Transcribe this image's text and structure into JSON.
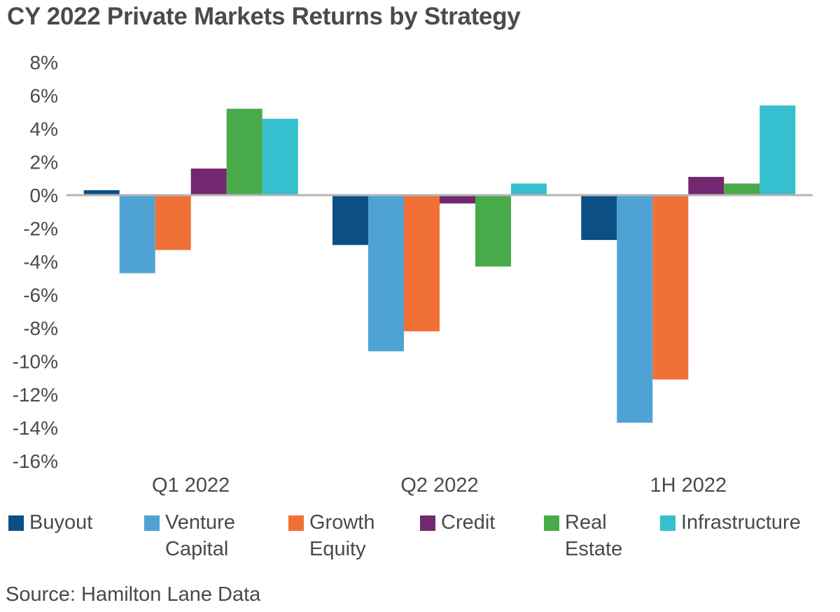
{
  "chart_data": {
    "type": "bar",
    "title": "CY 2022 Private Markets Returns by Strategy",
    "xlabel": "",
    "ylabel": "",
    "categories": [
      "Q1 2022",
      "Q2 2022",
      "1H 2022"
    ],
    "ylim": [
      -16,
      8
    ],
    "yticks": [
      8,
      6,
      4,
      2,
      0,
      -2,
      -4,
      -6,
      -8,
      -10,
      -12,
      -14,
      -16
    ],
    "ytick_labels": [
      "8%",
      "6%",
      "4%",
      "2%",
      "0%",
      "-2%",
      "-4%",
      "-6%",
      "-8%",
      "-10%",
      "-12%",
      "-14%",
      "-16%"
    ],
    "grid": false,
    "legend_position": "bottom",
    "series": [
      {
        "name": "Buyout",
        "legend_label": "Buyout",
        "color": "#0b4f84",
        "values": [
          0.3,
          -3.0,
          -2.7
        ]
      },
      {
        "name": "Venture Capital",
        "legend_label": "Venture\nCapital",
        "color": "#4fa3d4",
        "values": [
          -4.7,
          -9.4,
          -13.7
        ]
      },
      {
        "name": "Growth Equity",
        "legend_label": "Growth\nEquity",
        "color": "#f07036",
        "values": [
          -3.3,
          -8.2,
          -11.1
        ]
      },
      {
        "name": "Credit",
        "legend_label": "Credit",
        "color": "#722870",
        "values": [
          1.6,
          -0.5,
          1.1
        ]
      },
      {
        "name": "Real Estate",
        "legend_label": "Real\nEstate",
        "color": "#49aa4a",
        "values": [
          5.2,
          -4.3,
          0.7
        ]
      },
      {
        "name": "Infrastructure",
        "legend_label": "Infrastructure",
        "color": "#35bfcf",
        "values": [
          4.6,
          0.7,
          5.4
        ]
      }
    ],
    "source": "Source: Hamilton Lane Data"
  },
  "colors": {
    "axis": "#b5b5b5",
    "text": "#4a4a4a"
  }
}
